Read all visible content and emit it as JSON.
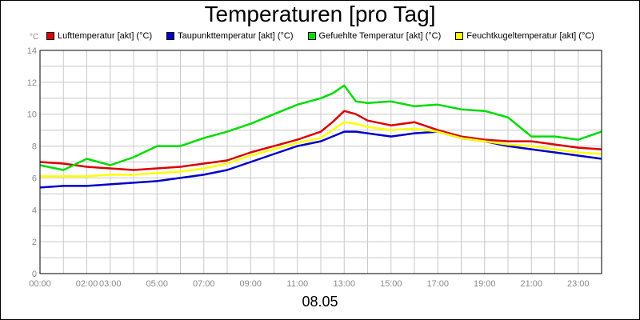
{
  "colors": {
    "luft": "#dd0000",
    "taupunkt": "#0000cc",
    "gefuehlt": "#00dd00",
    "feucht": "#ffff00",
    "grid": "#c8c8c8",
    "tick": "#888888"
  },
  "chart_data": {
    "type": "line",
    "title": "Temperaturen [pro Tag]",
    "xlabel": "08.05",
    "ylabel": "°C",
    "ylim": [
      0,
      14
    ],
    "xlim": [
      "00:00",
      "24:00"
    ],
    "y_ticks": [
      0,
      2,
      4,
      6,
      8,
      10,
      12,
      14
    ],
    "x_ticks": [
      "00:00",
      "02:00",
      "03:00",
      "05:00",
      "07:00",
      "09:00",
      "11:00",
      "13:00",
      "15:00",
      "17:00",
      "19:00",
      "21:00",
      "23:00"
    ],
    "grid": true,
    "legend_position": "top",
    "series": [
      {
        "name": "Lufttemperatur [akt] (°C)",
        "color_key": "luft",
        "x": [
          "00:00",
          "01:00",
          "02:00",
          "03:00",
          "04:00",
          "05:00",
          "06:00",
          "07:00",
          "08:00",
          "09:00",
          "10:00",
          "11:00",
          "12:00",
          "12:30",
          "13:00",
          "13:30",
          "14:00",
          "15:00",
          "16:00",
          "17:00",
          "18:00",
          "19:00",
          "20:00",
          "21:00",
          "22:00",
          "23:00",
          "24:00"
        ],
        "y": [
          7.0,
          6.9,
          6.7,
          6.6,
          6.5,
          6.6,
          6.7,
          6.9,
          7.1,
          7.6,
          8.0,
          8.4,
          8.9,
          9.5,
          10.2,
          10.0,
          9.6,
          9.3,
          9.5,
          9.0,
          8.6,
          8.4,
          8.3,
          8.3,
          8.1,
          7.9,
          7.8
        ]
      },
      {
        "name": "Taupunkttemperatur [akt] (°C)",
        "color_key": "taupunkt",
        "x": [
          "00:00",
          "01:00",
          "02:00",
          "03:00",
          "04:00",
          "05:00",
          "06:00",
          "07:00",
          "08:00",
          "09:00",
          "10:00",
          "11:00",
          "12:00",
          "12:30",
          "13:00",
          "13:30",
          "14:00",
          "15:00",
          "16:00",
          "17:00",
          "18:00",
          "19:00",
          "20:00",
          "21:00",
          "22:00",
          "23:00",
          "24:00"
        ],
        "y": [
          5.4,
          5.5,
          5.5,
          5.6,
          5.7,
          5.8,
          6.0,
          6.2,
          6.5,
          7.0,
          7.5,
          8.0,
          8.3,
          8.6,
          8.9,
          8.9,
          8.8,
          8.6,
          8.8,
          8.9,
          8.5,
          8.3,
          8.0,
          7.8,
          7.6,
          7.4,
          7.2
        ]
      },
      {
        "name": "Gefuehlte Temperatur [akt] (°C)",
        "color_key": "gefuehlt",
        "x": [
          "00:00",
          "01:00",
          "02:00",
          "03:00",
          "04:00",
          "05:00",
          "06:00",
          "07:00",
          "08:00",
          "09:00",
          "10:00",
          "11:00",
          "12:00",
          "12:30",
          "13:00",
          "13:30",
          "14:00",
          "15:00",
          "16:00",
          "17:00",
          "18:00",
          "19:00",
          "20:00",
          "21:00",
          "22:00",
          "23:00",
          "24:00"
        ],
        "y": [
          6.8,
          6.5,
          7.2,
          6.8,
          7.3,
          8.0,
          8.0,
          8.5,
          8.9,
          9.4,
          10.0,
          10.6,
          11.0,
          11.3,
          11.8,
          10.8,
          10.7,
          10.8,
          10.5,
          10.6,
          10.3,
          10.2,
          9.8,
          8.6,
          8.6,
          8.4,
          8.9
        ]
      },
      {
        "name": "Feuchtkugeltemperatur [akt] (°C)",
        "color_key": "feucht",
        "x": [
          "00:00",
          "01:00",
          "02:00",
          "03:00",
          "04:00",
          "05:00",
          "06:00",
          "07:00",
          "08:00",
          "09:00",
          "10:00",
          "11:00",
          "12:00",
          "12:30",
          "13:00",
          "13:30",
          "14:00",
          "15:00",
          "16:00",
          "17:00",
          "18:00",
          "19:00",
          "20:00",
          "21:00",
          "22:00",
          "23:00",
          "24:00"
        ],
        "y": [
          6.1,
          6.1,
          6.1,
          6.2,
          6.2,
          6.3,
          6.4,
          6.6,
          6.9,
          7.4,
          7.8,
          8.2,
          8.5,
          9.0,
          9.5,
          9.4,
          9.2,
          9.0,
          9.1,
          8.9,
          8.5,
          8.3,
          8.1,
          8.0,
          7.8,
          7.6,
          7.5
        ]
      }
    ]
  }
}
